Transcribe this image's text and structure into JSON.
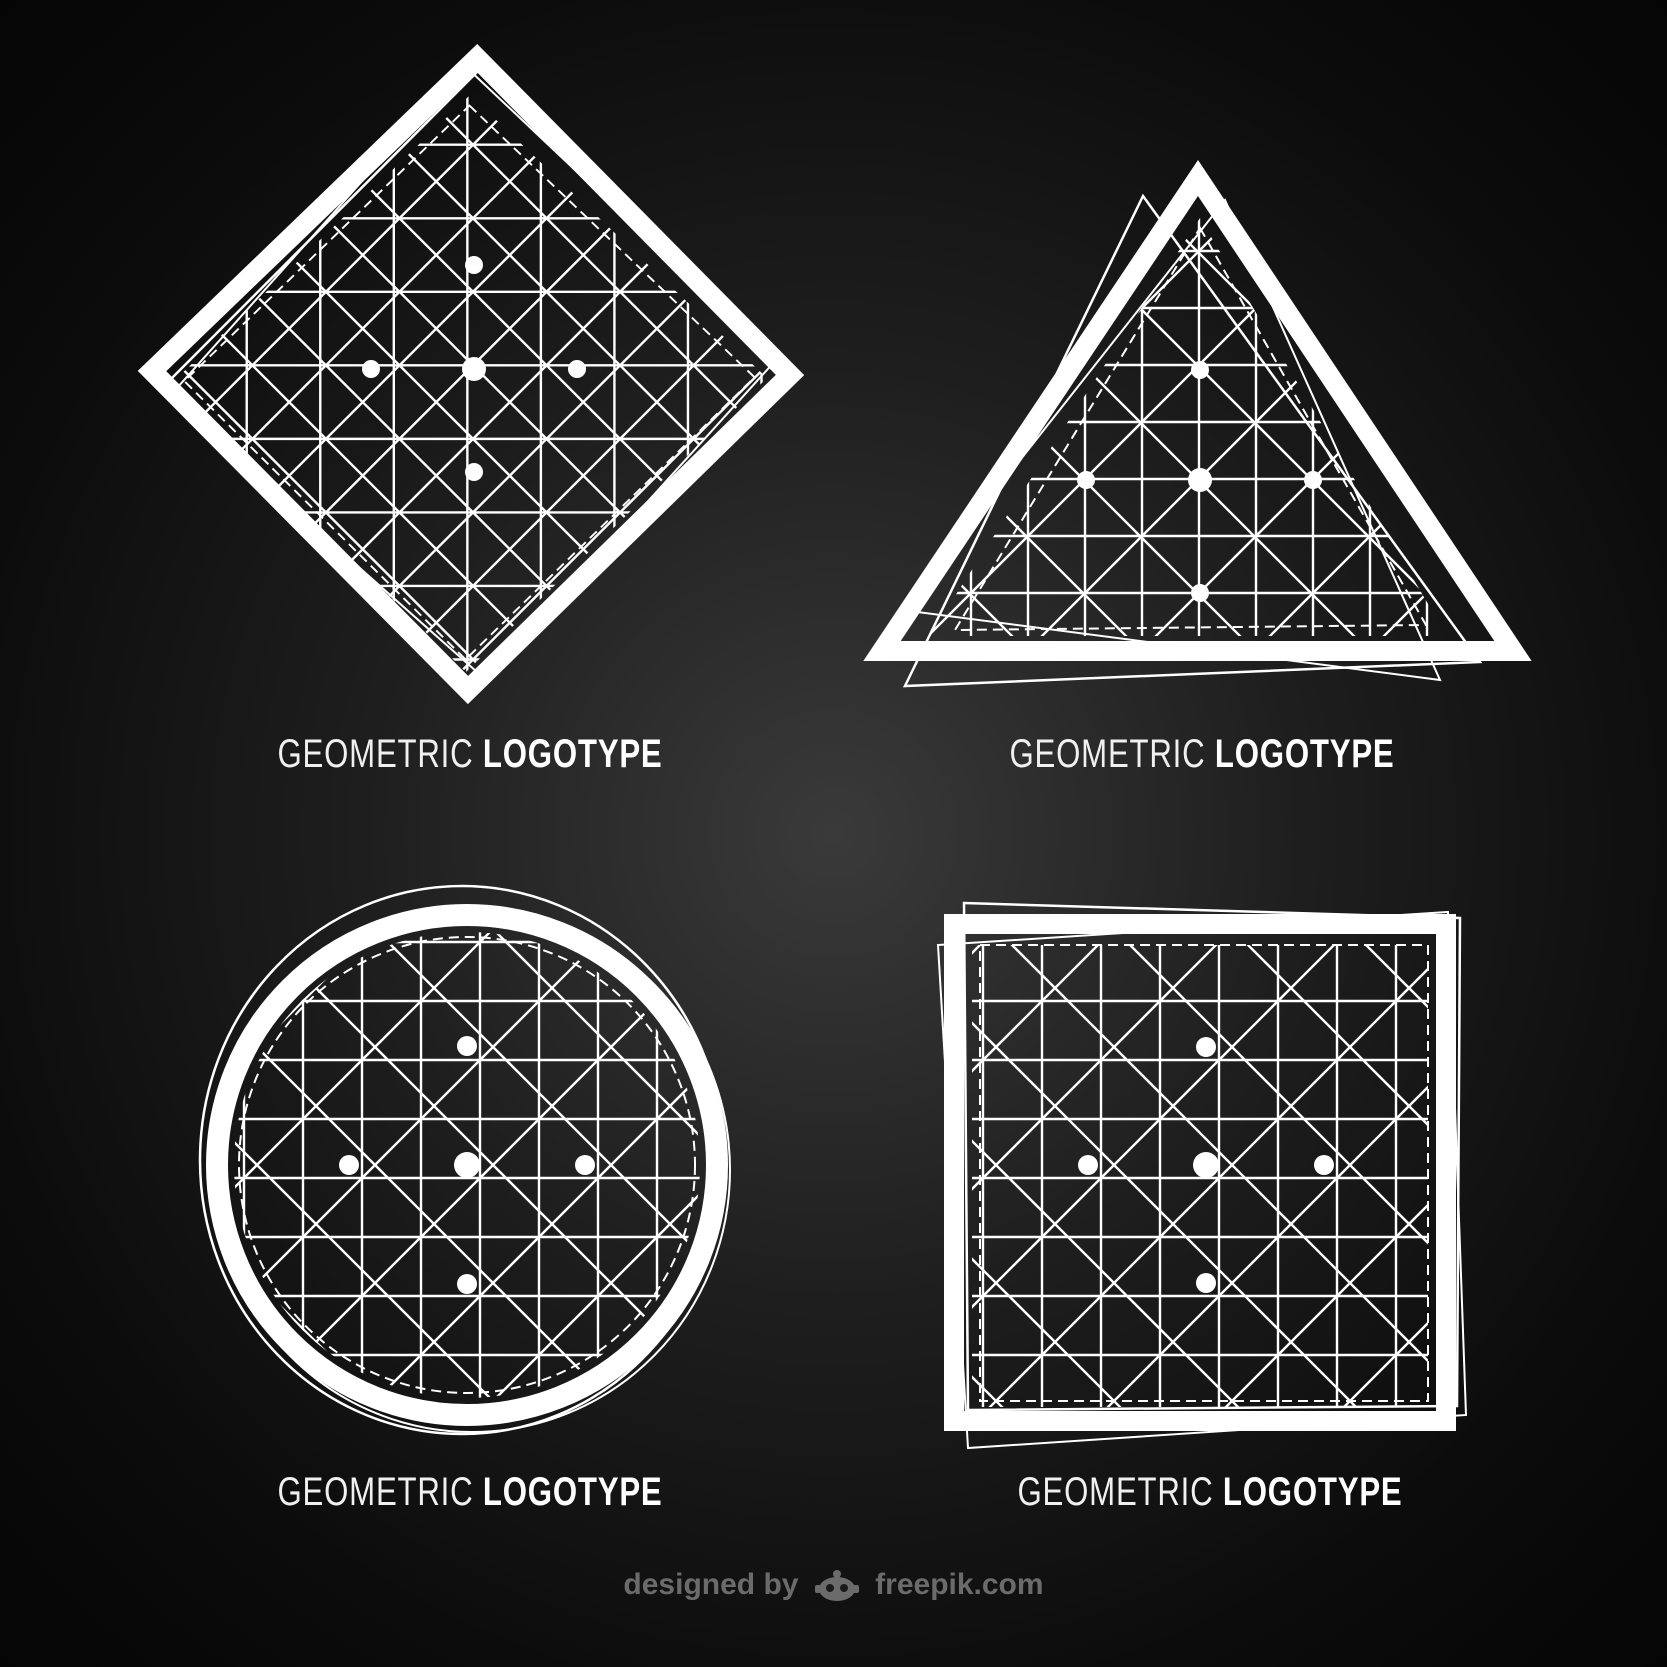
{
  "logos": [
    {
      "name": "diamond-logo",
      "caption_light": "GEOMETRIC",
      "caption_bold": "LOGOTYPE"
    },
    {
      "name": "triangle-logo",
      "caption_light": "GEOMETRIC",
      "caption_bold": "LOGOTYPE"
    },
    {
      "name": "circle-logo",
      "caption_light": "GEOMETRIC",
      "caption_bold": "LOGOTYPE"
    },
    {
      "name": "square-logo",
      "caption_light": "GEOMETRIC",
      "caption_bold": "LOGOTYPE"
    }
  ],
  "credit": {
    "designed_by": "designed by",
    "site": "freepik.com"
  },
  "colors": {
    "background": "#0c0c0c",
    "lines": "#ffffff",
    "credit": "#6b6b6b"
  }
}
